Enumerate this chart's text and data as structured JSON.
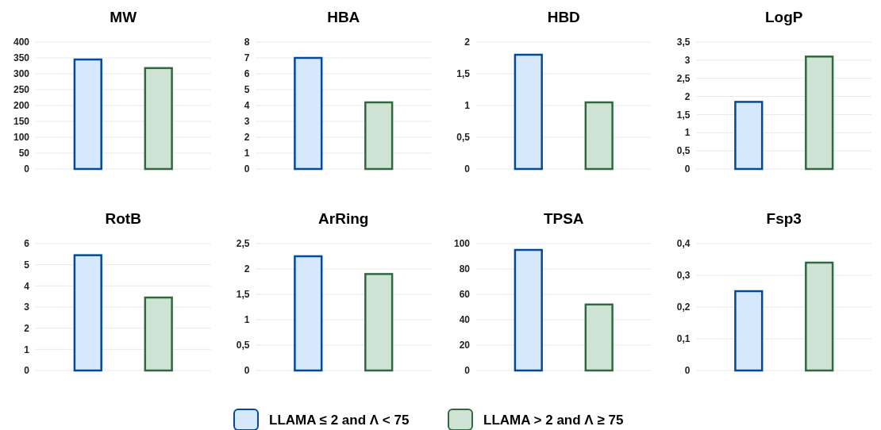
{
  "chart_data": [
    {
      "type": "bar",
      "title": "MW",
      "categories": [
        null,
        null
      ],
      "series": [
        {
          "name": "LLAMA ≤ 2 and Λ < 75",
          "color": "#d5e8fc",
          "values": [
            345,
            null
          ]
        },
        {
          "name": "LLAMA > 2 and Λ ≥ 75",
          "color": "#cfe3d5",
          "values": [
            null,
            318
          ]
        }
      ],
      "ylim": [
        0,
        400
      ],
      "yticks": [
        0,
        50,
        100,
        150,
        200,
        250,
        300,
        350,
        400
      ],
      "grid": "y",
      "tick_labels": "y",
      "legend": "bottom"
    },
    {
      "type": "bar",
      "title": "HBA",
      "categories": [
        null,
        null
      ],
      "series": [
        {
          "color": "#d5e8fc",
          "values": [
            7.0,
            null
          ]
        },
        {
          "color": "#cfe3d5",
          "values": [
            null,
            4.2
          ]
        }
      ],
      "ylim": [
        0,
        8
      ],
      "yticks": [
        0,
        1,
        2,
        3,
        4,
        5,
        6,
        7,
        8
      ],
      "grid": "y",
      "tick_labels": "y"
    },
    {
      "type": "bar",
      "title": "HBD",
      "categories": [
        null,
        null
      ],
      "series": [
        {
          "color": "#d5e8fc",
          "values": [
            1.8,
            null
          ]
        },
        {
          "color": "#cfe3d5",
          "values": [
            null,
            1.05
          ]
        }
      ],
      "ylim": [
        0,
        2
      ],
      "yticks": [
        0,
        {
          "value": 0.5,
          "label": "0,5"
        },
        1,
        {
          "value": 1.5,
          "label": "1,5"
        },
        2
      ],
      "grid": "y",
      "tick_labels": "y"
    },
    {
      "type": "bar",
      "title": "LogP",
      "categories": [
        null,
        null
      ],
      "series": [
        {
          "color": "#d5e8fc",
          "values": [
            1.85,
            null
          ]
        },
        {
          "color": "#cfe3d5",
          "values": [
            null,
            3.1
          ]
        }
      ],
      "ylim": [
        0,
        3.5
      ],
      "yticks": [
        0,
        {
          "value": 0.5,
          "label": "0,5"
        },
        1,
        {
          "value": 1.5,
          "label": "1,5"
        },
        2,
        {
          "value": 2.5,
          "label": "2,5"
        },
        3,
        {
          "value": 3.5,
          "label": "3,5"
        }
      ],
      "grid": "y",
      "tick_labels": "y"
    },
    {
      "type": "bar",
      "title": "RotB",
      "categories": [
        null,
        null
      ],
      "series": [
        {
          "color": "#d5e8fc",
          "values": [
            5.45,
            null
          ]
        },
        {
          "color": "#cfe3d5",
          "values": [
            null,
            3.45
          ]
        }
      ],
      "ylim": [
        0,
        6
      ],
      "yticks": [
        0,
        1,
        2,
        3,
        4,
        5,
        6
      ],
      "grid": "y",
      "tick_labels": "y"
    },
    {
      "type": "bar",
      "title": "ArRing",
      "categories": [
        null,
        null
      ],
      "series": [
        {
          "color": "#d5e8fc",
          "values": [
            2.25,
            null
          ]
        },
        {
          "color": "#cfe3d5",
          "values": [
            null,
            1.9
          ]
        }
      ],
      "ylim": [
        0,
        2.5
      ],
      "yticks": [
        0,
        {
          "value": 0.5,
          "label": "0,5"
        },
        1,
        {
          "value": 1.5,
          "label": "1,5"
        },
        2,
        {
          "value": 2.5,
          "label": "2,5"
        }
      ],
      "grid": "y",
      "tick_labels": "y"
    },
    {
      "type": "bar",
      "title": "TPSA",
      "categories": [
        null,
        null
      ],
      "series": [
        {
          "color": "#d5e8fc",
          "values": [
            95,
            null
          ]
        },
        {
          "color": "#cfe3d5",
          "values": [
            null,
            52
          ]
        }
      ],
      "ylim": [
        0,
        100
      ],
      "yticks": [
        0,
        20,
        40,
        60,
        80,
        100
      ],
      "grid": "y",
      "tick_labels": "y"
    },
    {
      "type": "bar",
      "title": "Fsp3",
      "categories": [
        null,
        null
      ],
      "series": [
        {
          "color": "#d5e8fc",
          "values": [
            0.25,
            null
          ]
        },
        {
          "color": "#cfe3d5",
          "values": [
            null,
            0.34
          ]
        }
      ],
      "ylim": [
        0,
        0.4
      ],
      "yticks": [
        0,
        {
          "value": 0.1,
          "label": "0,1"
        },
        {
          "value": 0.2,
          "label": "0,2"
        },
        {
          "value": 0.3,
          "label": "0,3"
        },
        {
          "value": 0.4,
          "label": "0,4"
        }
      ],
      "grid": "y",
      "tick_labels": "y"
    }
  ]
}
